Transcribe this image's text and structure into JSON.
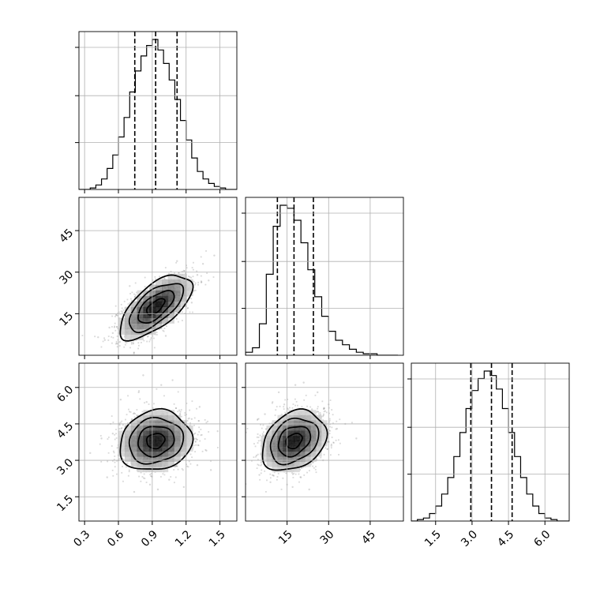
{
  "chart_data": {
    "type": "corner",
    "grid": true,
    "colors": {
      "line": "#000000",
      "points": "#777777",
      "grid": "#b0b0b0",
      "fill_dark": "#000000"
    },
    "parameters": [
      {
        "id": "p1",
        "range": [
          0.25,
          1.65
        ],
        "ticks": [
          0.3,
          0.6,
          0.9,
          1.2,
          1.5
        ],
        "tick_labels": [
          "0.3",
          "0.6",
          "0.9",
          "1.2",
          "1.5"
        ],
        "quantiles": [
          0.745,
          0.93,
          1.12
        ],
        "histogram": {
          "edges": [
            0.25,
            0.3,
            0.35,
            0.4,
            0.45,
            0.5,
            0.55,
            0.6,
            0.65,
            0.7,
            0.75,
            0.8,
            0.85,
            0.9,
            0.95,
            1.0,
            1.05,
            1.1,
            1.15,
            1.2,
            1.25,
            1.3,
            1.35,
            1.4,
            1.45,
            1.5,
            1.55,
            1.6,
            1.65
          ],
          "counts": [
            0,
            0,
            1,
            3,
            7,
            14,
            23,
            35,
            48,
            65,
            79,
            89,
            96,
            100,
            93,
            84,
            73,
            60,
            46,
            33,
            21,
            12,
            7,
            4,
            2,
            1,
            0,
            0
          ]
        }
      },
      {
        "id": "p2",
        "range": [
          0,
          57
        ],
        "ticks": [
          15,
          30,
          45
        ],
        "tick_labels": [
          "15",
          "30",
          "45"
        ],
        "quantiles": [
          11.5,
          17.5,
          24.5
        ],
        "histogram": {
          "edges": [
            0,
            2.5,
            5,
            7.5,
            10,
            12.5,
            15,
            17.5,
            20,
            22.5,
            25,
            27.5,
            30,
            32.5,
            35,
            37.5,
            40,
            42.5,
            45,
            47.5,
            50,
            52.5,
            55
          ],
          "counts": [
            2,
            5,
            21,
            54,
            86,
            100,
            98,
            90,
            75,
            57,
            39,
            26,
            16,
            10,
            7,
            4,
            2,
            1,
            1,
            0,
            0,
            0
          ]
        }
      },
      {
        "id": "p3",
        "range": [
          0.5,
          7.0
        ],
        "ticks": [
          1.5,
          3.0,
          4.5,
          6.0
        ],
        "tick_labels": [
          "1.5",
          "3.0",
          "4.5",
          "6.0"
        ],
        "quantiles": [
          2.95,
          3.8,
          4.65
        ],
        "histogram": {
          "edges": [
            0.5,
            0.75,
            1.0,
            1.25,
            1.5,
            1.75,
            2.0,
            2.25,
            2.5,
            2.75,
            3.0,
            3.25,
            3.5,
            3.75,
            4.0,
            4.25,
            4.5,
            4.75,
            5.0,
            5.25,
            5.5,
            5.75,
            6.0,
            6.25,
            6.5,
            6.75,
            7.0
          ],
          "counts": [
            0,
            1,
            2,
            5,
            10,
            18,
            29,
            43,
            59,
            75,
            87,
            95,
            100,
            97,
            88,
            75,
            59,
            43,
            29,
            18,
            10,
            5,
            2,
            1,
            0,
            0
          ]
        }
      }
    ],
    "pairs": [
      {
        "x": "p1",
        "y": "p2",
        "center": [
          0.93,
          17.5
        ],
        "std": [
          0.16,
          5.8
        ],
        "corr": 0.65,
        "points": [
          [
            0.55,
            8.0
          ],
          [
            0.62,
            12.0
          ],
          [
            0.7,
            10.5
          ],
          [
            0.78,
            15.0
          ],
          [
            0.85,
            13.0
          ],
          [
            0.92,
            18.5
          ],
          [
            1.0,
            20.0
          ],
          [
            1.08,
            22.5
          ],
          [
            1.15,
            26.0
          ],
          [
            1.22,
            24.0
          ],
          [
            1.3,
            29.0
          ],
          [
            0.48,
            5.5
          ],
          [
            0.66,
            17.0
          ],
          [
            0.88,
            24.0
          ],
          [
            1.05,
            16.0
          ],
          [
            1.35,
            33.0
          ],
          [
            0.42,
            6.5
          ],
          [
            0.75,
            20.5
          ],
          [
            1.18,
            30.5
          ],
          [
            1.45,
            36.0
          ],
          [
            0.95,
            11.0
          ],
          [
            0.58,
            14.5
          ],
          [
            1.25,
            19.0
          ],
          [
            0.81,
            9.0
          ],
          [
            1.12,
            34.0
          ],
          [
            0.7,
            25.0
          ],
          [
            1.4,
            27.0
          ],
          [
            0.52,
            10.0
          ],
          [
            0.99,
            28.0
          ],
          [
            1.02,
            7.0
          ]
        ]
      },
      {
        "x": "p1",
        "y": "p3",
        "center": [
          0.93,
          3.8
        ],
        "std": [
          0.16,
          0.62
        ],
        "corr": 0.12,
        "points": [
          [
            0.6,
            3.0
          ],
          [
            0.72,
            4.5
          ],
          [
            0.8,
            2.5
          ],
          [
            0.9,
            3.6
          ],
          [
            1.0,
            4.9
          ],
          [
            1.1,
            3.2
          ],
          [
            1.2,
            4.0
          ],
          [
            1.3,
            2.8
          ],
          [
            0.55,
            4.1
          ],
          [
            0.85,
            5.4
          ],
          [
            1.05,
            2.2
          ],
          [
            1.15,
            5.0
          ],
          [
            0.68,
            3.5
          ],
          [
            0.95,
            1.8
          ],
          [
            1.25,
            4.7
          ],
          [
            0.45,
            3.9
          ],
          [
            1.38,
            3.4
          ],
          [
            0.78,
            5.8
          ],
          [
            0.98,
            6.1
          ],
          [
            1.32,
            5.2
          ],
          [
            0.5,
            2.3
          ],
          [
            0.88,
            2.0
          ],
          [
            1.48,
            4.2
          ],
          [
            0.62,
            5.5
          ],
          [
            1.08,
            6.3
          ],
          [
            0.35,
            3.3
          ],
          [
            1.42,
            2.6
          ],
          [
            0.74,
            1.7
          ],
          [
            1.18,
            1.9
          ],
          [
            0.82,
            6.5
          ]
        ]
      },
      {
        "x": "p2",
        "y": "p3",
        "center": [
          17.5,
          3.8
        ],
        "std": [
          5.8,
          0.62
        ],
        "corr": 0.28,
        "points": [
          [
            8.0,
            3.0
          ],
          [
            11.0,
            4.4
          ],
          [
            13.0,
            2.6
          ],
          [
            16.0,
            3.7
          ],
          [
            19.0,
            4.8
          ],
          [
            22.0,
            3.3
          ],
          [
            25.0,
            4.2
          ],
          [
            28.0,
            3.0
          ],
          [
            6.0,
            3.8
          ],
          [
            14.0,
            5.3
          ],
          [
            20.0,
            2.3
          ],
          [
            24.0,
            5.1
          ],
          [
            10.0,
            3.4
          ],
          [
            17.0,
            1.9
          ],
          [
            27.0,
            4.6
          ],
          [
            5.0,
            2.4
          ],
          [
            31.0,
            3.6
          ],
          [
            12.0,
            5.8
          ],
          [
            18.0,
            6.1
          ],
          [
            30.0,
            5.3
          ],
          [
            7.0,
            4.9
          ],
          [
            15.0,
            2.0
          ],
          [
            33.0,
            4.3
          ],
          [
            9.0,
            2.1
          ],
          [
            21.0,
            6.2
          ],
          [
            4.0,
            3.2
          ],
          [
            36.0,
            4.5
          ],
          [
            23.0,
            1.8
          ],
          [
            26.0,
            5.8
          ],
          [
            40.0,
            3.9
          ]
        ]
      }
    ]
  }
}
